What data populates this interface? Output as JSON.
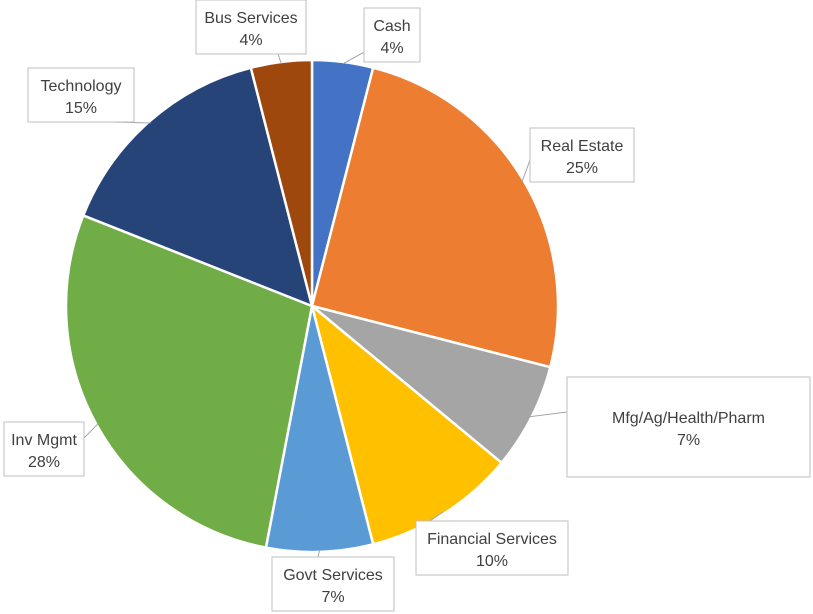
{
  "chart_data": {
    "type": "pie",
    "slices": [
      {
        "name": "Cash",
        "value": 4,
        "label": "4%",
        "color": "#4472C4"
      },
      {
        "name": "Real Estate",
        "value": 25,
        "label": "25%",
        "color": "#ED7D31"
      },
      {
        "name": "Mfg/Ag/Health/Pharm",
        "value": 7,
        "label": "7%",
        "color": "#A5A5A5"
      },
      {
        "name": "Financial Services",
        "value": 10,
        "label": "10%",
        "color": "#FFC000"
      },
      {
        "name": "Govt Services",
        "value": 7,
        "label": "7%",
        "color": "#5B9BD5"
      },
      {
        "name": "Inv Mgmt",
        "value": 28,
        "label": "28%",
        "color": "#70AD47"
      },
      {
        "name": "Technology",
        "value": 15,
        "label": "15%",
        "color": "#264478"
      },
      {
        "name": "Bus Services",
        "value": 4,
        "label": "4%",
        "color": "#9E480E"
      }
    ],
    "data_labels": "outside with leader lines",
    "legend": "none"
  }
}
